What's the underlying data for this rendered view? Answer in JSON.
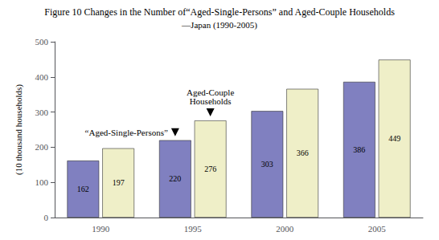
{
  "chart_data": {
    "type": "bar",
    "title": "Figure 10 Changes in the Number of“Aged-Single-Persons” and Aged-Couple Households",
    "subtitle": "—Japan (1990-2005)",
    "categories": [
      "1990",
      "1995",
      "2000",
      "2005"
    ],
    "series": [
      {
        "name": "“Aged-Single-Persons”",
        "color": "#8080c0",
        "values": [
          162,
          220,
          303,
          386
        ]
      },
      {
        "name": "Aged-Couple\nHouseholds",
        "color": "#efefc8",
        "values": [
          197,
          276,
          366,
          449
        ]
      }
    ],
    "ylabel": "(10 thousand households)",
    "ylim": [
      0,
      500
    ],
    "yticks": [
      0,
      100,
      200,
      300,
      400,
      500
    ],
    "grid": false,
    "data_labels": true,
    "annotations": [
      {
        "text": "“Aged-Single-Persons”",
        "x": "1995"
      },
      {
        "text": "Aged-Couple\nHouseholds",
        "x": "1995"
      }
    ]
  }
}
